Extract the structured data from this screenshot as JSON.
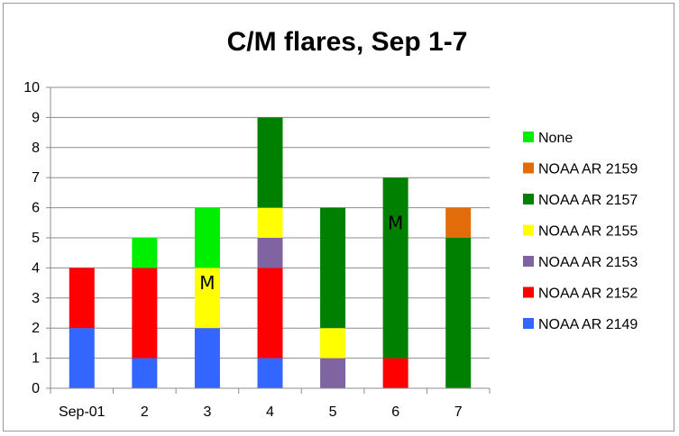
{
  "chart_data": {
    "type": "bar",
    "stacked": true,
    "title": "C/M flares, Sep 1-7",
    "xlabel": "",
    "ylabel": "",
    "categories": [
      "Sep-01",
      "2",
      "3",
      "4",
      "5",
      "6",
      "7"
    ],
    "ylim": [
      0,
      10
    ],
    "yticks": [
      0,
      1,
      2,
      3,
      4,
      5,
      6,
      7,
      8,
      9,
      10
    ],
    "grid": "horizontal",
    "legend_position": "right",
    "series": [
      {
        "name": "NOAA AR 2149",
        "color": "#3366ff",
        "values": [
          2,
          1,
          2,
          1,
          0,
          0,
          0
        ]
      },
      {
        "name": "NOAA AR 2152",
        "color": "#ff0000",
        "values": [
          2,
          3,
          0,
          3,
          0,
          1,
          0
        ]
      },
      {
        "name": "NOAA AR 2153",
        "color": "#8064a2",
        "values": [
          0,
          0,
          0,
          1,
          1,
          0,
          0
        ]
      },
      {
        "name": "NOAA AR 2155",
        "color": "#ffff00",
        "values": [
          0,
          0,
          2,
          1,
          1,
          0,
          0
        ]
      },
      {
        "name": "NOAA AR 2157",
        "color": "#008000",
        "values": [
          0,
          0,
          0,
          3,
          4,
          6,
          5
        ]
      },
      {
        "name": "NOAA AR 2159",
        "color": "#e36c0a",
        "values": [
          0,
          0,
          0,
          0,
          0,
          0,
          1
        ]
      },
      {
        "name": "None",
        "color": "#00ee00",
        "values": [
          0,
          1,
          2,
          0,
          0,
          0,
          0
        ]
      }
    ],
    "legend_order": [
      "None",
      "NOAA AR 2159",
      "NOAA AR 2157",
      "NOAA AR 2155",
      "NOAA AR 2153",
      "NOAA AR 2152",
      "NOAA AR 2149"
    ],
    "annotations": [
      {
        "text": "M",
        "category": "3",
        "y": 3.5
      },
      {
        "text": "M",
        "category": "6",
        "y": 5.5
      }
    ]
  }
}
